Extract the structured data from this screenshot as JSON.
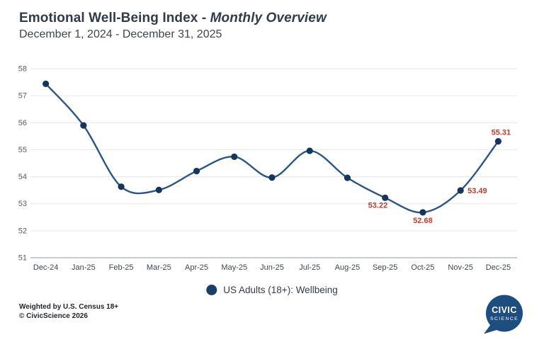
{
  "header": {
    "title_main": "Emotional Well-Being Index - ",
    "title_emphasis": "Monthly Overview",
    "subtitle": "December 1, 2024 - December 31, 2025"
  },
  "chart_data": {
    "type": "line",
    "title": "Emotional Well-Being Index - Monthly Overview",
    "subtitle": "December 1, 2024 - December 31, 2025",
    "categories": [
      "Dec-24",
      "Jan-25",
      "Feb-25",
      "Mar-25",
      "Apr-25",
      "May-25",
      "Jun-25",
      "Jul-25",
      "Aug-25",
      "Sep-25",
      "Oct-25",
      "Nov-25",
      "Dec-25"
    ],
    "series": [
      {
        "name": "US Adults (18+): Wellbeing",
        "values": [
          57.44,
          55.9,
          53.63,
          53.51,
          54.21,
          54.74,
          53.97,
          54.96,
          53.96,
          53.22,
          52.68,
          53.49,
          55.31
        ]
      }
    ],
    "ylim": [
      51,
      58
    ],
    "yticks": [
      58,
      57,
      56,
      55,
      54,
      53,
      52,
      51
    ],
    "grid": true,
    "legend_position": "bottom",
    "point_labels": [
      {
        "category": "Sep-25",
        "index": 9,
        "text": "53.22",
        "position": "below-left"
      },
      {
        "category": "Oct-25",
        "index": 10,
        "text": "52.68",
        "position": "below"
      },
      {
        "category": "Nov-25",
        "index": 11,
        "text": "53.49",
        "position": "right"
      },
      {
        "category": "Dec-25",
        "index": 12,
        "text": "55.31",
        "position": "above"
      }
    ],
    "colors": {
      "line": "#2A5586",
      "point": "#16355B",
      "annotation": "#C4392B",
      "grid": "#E6E6E6",
      "axis": "#ABABAB"
    }
  },
  "legend": {
    "label": "US Adults (18+): Wellbeing",
    "marker_color": "#1A3E68"
  },
  "footer": {
    "line1": "Weighted by U.S. Census 18+",
    "line2": "© CivicScience 2026"
  },
  "logo": {
    "line1": "CIVIC",
    "line2": "SCIENCE",
    "color": "#1D4E7F"
  }
}
